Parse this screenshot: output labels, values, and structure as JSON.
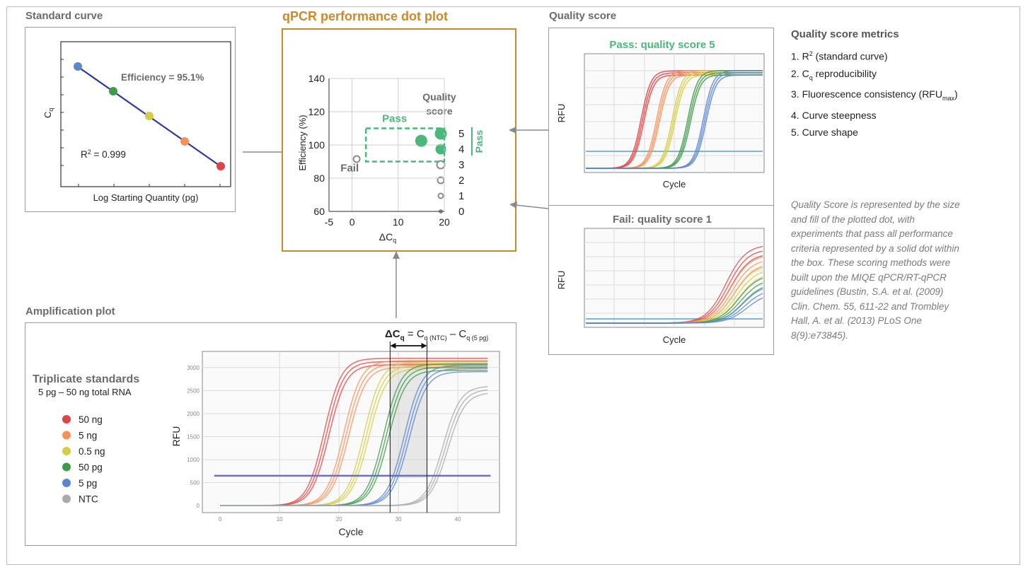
{
  "colors": {
    "gold": "#c98a2c",
    "green": "#49b87a",
    "grey_text": "#6b6b6b",
    "c50ng": "#e04545",
    "c5ng": "#f5925a",
    "c05ng": "#d6cc45",
    "c50pg": "#3f9a4a",
    "c5pg": "#5b87cf",
    "ntc": "#ababab",
    "threshold": "#6b6fc8"
  },
  "standard_curve": {
    "title": "Standard curve",
    "efficiency": "Efficiency = 95.1%",
    "r2_pre": "R",
    "r2_sup": "2",
    "r2_post": " = 0.999",
    "ylabel": "C",
    "ylabel_sub": "q",
    "xlabel": "Log Starting Quantity (pg)"
  },
  "dot_plot": {
    "title": "qPCR performance dot plot",
    "ylabel": "Efficiency (%)",
    "xlabel": "ΔC",
    "xlabel_sub": "q",
    "pass_label": "Pass",
    "fail_label": "Fail",
    "legend_title_1": "Quality",
    "legend_title_2": "score",
    "legend_items": [
      "5",
      "4",
      "3",
      "2",
      "1",
      "0"
    ],
    "legend_pass": "Pass"
  },
  "chart_data": {
    "type": "scatter",
    "title": "qPCR performance dot plot",
    "xlabel": "ΔCq",
    "ylabel": "Efficiency (%)",
    "xlim": [
      -5,
      20
    ],
    "ylim": [
      60,
      140
    ],
    "xticks": [
      "-5",
      "0",
      "10",
      "20"
    ],
    "yticks": [
      "60",
      "80",
      "100",
      "120",
      "140"
    ],
    "points": [
      {
        "label": "Pass",
        "x": 15,
        "y": 102.5,
        "quality_score": 5,
        "filled": true
      },
      {
        "label": "Fail",
        "x": 1,
        "y": 91.5,
        "quality_score": 1,
        "filled": false
      }
    ],
    "pass_box": {
      "x": [
        3,
        20
      ],
      "y": [
        90,
        110
      ]
    }
  },
  "quality_score": {
    "title": "Quality score",
    "pass_title": "Pass: quality score 5",
    "fail_title": "Fail: quality score 1",
    "ylabel": "RFU",
    "xlabel": "Cycle"
  },
  "metrics": {
    "title": "Quality score metrics",
    "items": [
      {
        "pre": "1. R",
        "sup": "2",
        "post": " (standard curve)"
      },
      {
        "pre": "2. C",
        "sub": "q",
        "post": " reproducibility"
      },
      {
        "pre": "3. Fluorescence consistency (RFU",
        "sub": "max",
        "post": ")"
      },
      {
        "pre": "4. Curve steepness"
      },
      {
        "pre": "5. Curve shape"
      }
    ]
  },
  "note": "Quality Score is represented by the size and fill of the plotted dot, with experiments that pass all performance criteria represented by a solid dot within the box. These scoring methods were built upon the MIQE qPCR/RT-qPCR guidelines (Bustin, S.A. et al. (2009) Clin. Chem. 55, 611-22 and Trombley Hall, A. et al. (2013) PLoS One 8(9):e73845).",
  "amplification": {
    "title": "Amplification plot",
    "legend_title": "Triplicate standards",
    "legend_subtitle": "5 pg – 50 ng total RNA",
    "legend_items": [
      {
        "label": "50 ng",
        "color": "#e04545"
      },
      {
        "label": "5 ng",
        "color": "#f5925a"
      },
      {
        "label": "0.5 ng",
        "color": "#d6cc45"
      },
      {
        "label": "50 pg",
        "color": "#3f9a4a"
      },
      {
        "label": "5 pg",
        "color": "#5b87cf"
      },
      {
        "label": "NTC",
        "color": "#ababab"
      }
    ],
    "ylabel": "RFU",
    "xlabel": "Cycle",
    "xticks": [
      "0",
      "10",
      "20",
      "30",
      "40"
    ],
    "yticks": [
      "0",
      "500",
      "1000",
      "1500",
      "2000",
      "2500",
      "3000"
    ],
    "formula_delta": "ΔC",
    "formula_delta_sub": "q",
    "formula_eq": " = C",
    "formula_ntc_sub": "q (NTC)",
    "formula_minus": " – C",
    "formula_5pg_sub": "q (5 pg)"
  }
}
